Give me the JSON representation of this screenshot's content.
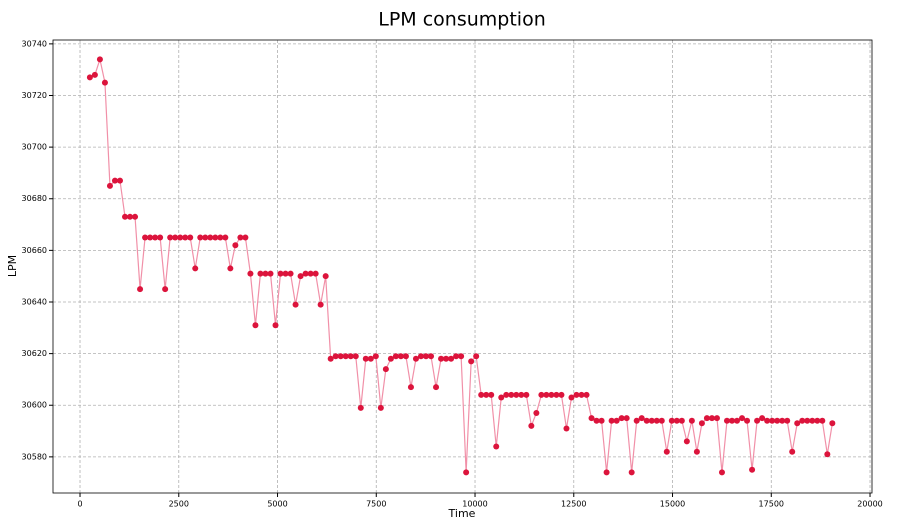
{
  "chart_data": {
    "type": "line",
    "title": "LPM consumption",
    "x_label": "Time",
    "y_label": "LPM",
    "x": [
      250,
      377,
      504,
      631,
      758,
      885,
      1012,
      1139,
      1266,
      1393,
      1520,
      1647,
      1774,
      1901,
      2028,
      2155,
      2282,
      2409,
      2536,
      2663,
      2790,
      2917,
      3044,
      3171,
      3298,
      3425,
      3552,
      3679,
      3806,
      3933,
      4060,
      4187,
      4314,
      4441,
      4568,
      4695,
      4822,
      4949,
      5076,
      5203,
      5330,
      5457,
      5584,
      5711,
      5838,
      5965,
      6092,
      6219,
      6346,
      6473,
      6600,
      6727,
      6854,
      6981,
      7108,
      7235,
      7362,
      7489,
      7616,
      7743,
      7870,
      7997,
      8124,
      8251,
      8378,
      8505,
      8632,
      8759,
      8886,
      9013,
      9140,
      9267,
      9394,
      9521,
      9648,
      9775,
      9902,
      10029,
      10156,
      10283,
      10410,
      10537,
      10664,
      10791,
      10918,
      11045,
      11172,
      11299,
      11426,
      11553,
      11680,
      11807,
      11934,
      12061,
      12188,
      12315,
      12442,
      12569,
      12696,
      12823,
      12950,
      13077,
      13204,
      13331,
      13458,
      13585,
      13712,
      13839,
      13966,
      14093,
      14220,
      14347,
      14474,
      14601,
      14728,
      14855,
      14982,
      15109,
      15236,
      15363,
      15490,
      15617,
      15744,
      15871,
      15998,
      16125,
      16252,
      16379,
      16506,
      16633,
      16760,
      16887,
      17014,
      17141,
      17268,
      17395,
      17522,
      17649,
      17776,
      17903,
      18030,
      18157,
      18284,
      18411,
      18538,
      18665,
      18792,
      18919,
      19046
    ],
    "values": [
      30727,
      30728,
      30734,
      30725,
      30685,
      30687,
      30687,
      30673,
      30673,
      30673,
      30645,
      30665,
      30665,
      30665,
      30665,
      30645,
      30665,
      30665,
      30665,
      30665,
      30665,
      30653,
      30665,
      30665,
      30665,
      30665,
      30665,
      30665,
      30653,
      30662,
      30665,
      30665,
      30651,
      30631,
      30651,
      30651,
      30651,
      30631,
      30651,
      30651,
      30651,
      30639,
      30650,
      30651,
      30651,
      30651,
      30639,
      30650,
      30618,
      30619,
      30619,
      30619,
      30619,
      30619,
      30599,
      30618,
      30618,
      30619,
      30599,
      30614,
      30618,
      30619,
      30619,
      30619,
      30607,
      30618,
      30619,
      30619,
      30619,
      30607,
      30618,
      30618,
      30618,
      30619,
      30619,
      30574,
      30617,
      30619,
      30604,
      30604,
      30604,
      30584,
      30603,
      30604,
      30604,
      30604,
      30604,
      30604,
      30592,
      30597,
      30604,
      30604,
      30604,
      30604,
      30604,
      30591,
      30603,
      30604,
      30604,
      30604,
      30595,
      30594,
      30594,
      30574,
      30594,
      30594,
      30595,
      30595,
      30574,
      30594,
      30595,
      30594,
      30594,
      30594,
      30594,
      30582,
      30594,
      30594,
      30594,
      30586,
      30594,
      30582,
      30593,
      30595,
      30595,
      30595,
      30574,
      30594,
      30594,
      30594,
      30595,
      30594,
      30575,
      30594,
      30595,
      30594,
      30594,
      30594,
      30594,
      30594,
      30582,
      30593,
      30594,
      30594,
      30594,
      30594,
      30594,
      30581,
      30593
    ],
    "line_color": "#f190a8",
    "marker_color": "#dc143c",
    "xlim": [
      -684,
      20050
    ],
    "xticks": [
      0,
      2500,
      5000,
      7500,
      10000,
      12500,
      15000,
      17500,
      20000
    ],
    "ylim": [
      30566,
      30741.5
    ],
    "yticks": [
      30580,
      30600,
      30620,
      30640,
      30660,
      30680,
      30700,
      30720,
      30740
    ],
    "grid": true
  }
}
